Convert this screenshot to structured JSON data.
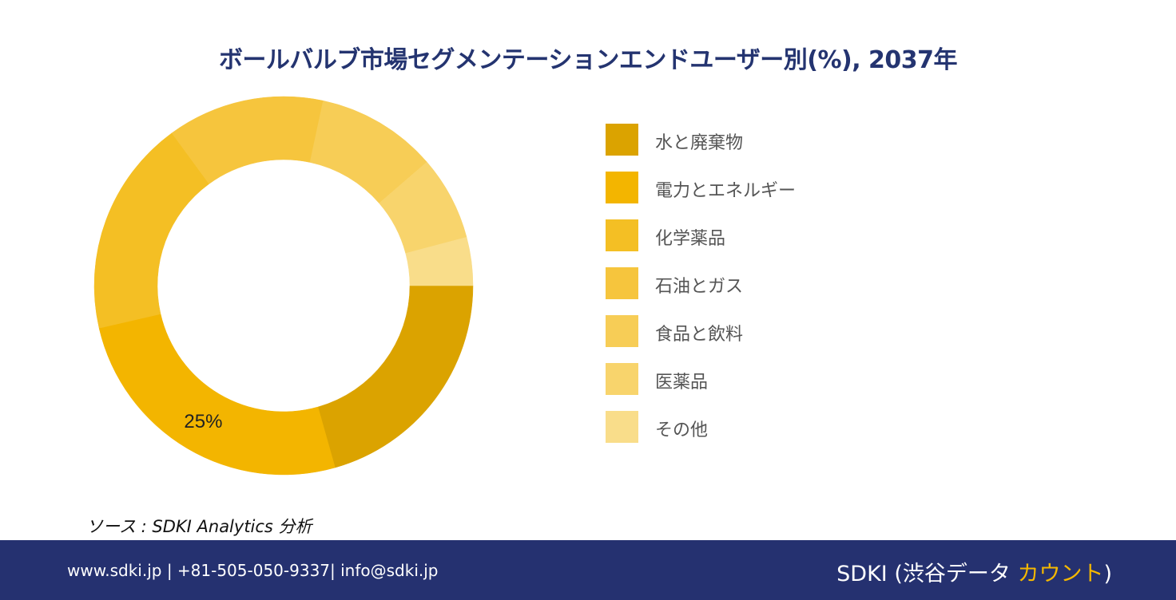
{
  "chart_data": {
    "type": "pie",
    "title": "ボールバルブ市場セグメンテーションエンドユーザー別(%), 2037年",
    "categories": [
      "水と廃棄物",
      "電力とエネルギー",
      "化学薬品",
      "石油とガス",
      "食品と飲料",
      "医薬品",
      "その他"
    ],
    "values": [
      20,
      25,
      18,
      13,
      10,
      7,
      4
    ],
    "colors": [
      "#dba300",
      "#f3b500",
      "#f4bf24",
      "#f6c53d",
      "#f7cd56",
      "#f8d46c",
      "#f9dd8a"
    ],
    "data_labels": [
      "",
      "25%",
      "",
      "",
      "",
      "",
      ""
    ],
    "legend_position": "right",
    "donut": true
  },
  "source": "ソース : SDKI Analytics 分析",
  "footer": {
    "contact": "www.sdki.jp | +81-505-050-9337| info@sdki.jp",
    "brand_main": "SDKI (渋谷データ ",
    "brand_accent": "カウント",
    "brand_close": ")"
  }
}
